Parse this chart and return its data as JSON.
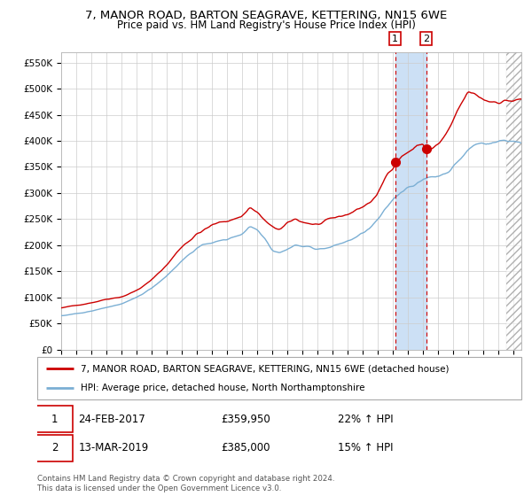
{
  "title": "7, MANOR ROAD, BARTON SEAGRAVE, KETTERING, NN15 6WE",
  "subtitle": "Price paid vs. HM Land Registry's House Price Index (HPI)",
  "legend_line1": "7, MANOR ROAD, BARTON SEAGRAVE, KETTERING, NN15 6WE (detached house)",
  "legend_line2": "HPI: Average price, detached house, North Northamptonshire",
  "annotation1_date": "24-FEB-2017",
  "annotation1_price": "£359,950",
  "annotation1_hpi": "22% ↑ HPI",
  "annotation2_date": "13-MAR-2019",
  "annotation2_price": "£385,000",
  "annotation2_hpi": "15% ↑ HPI",
  "footnote": "Contains HM Land Registry data © Crown copyright and database right 2024.\nThis data is licensed under the Open Government Licence v3.0.",
  "ylim": [
    0,
    570000
  ],
  "yticks": [
    0,
    50000,
    100000,
    150000,
    200000,
    250000,
    300000,
    350000,
    400000,
    450000,
    500000,
    550000
  ],
  "xlim_start": 1995.0,
  "xlim_end": 2025.5,
  "point1_x": 2017.14,
  "point1_y": 359950,
  "point2_x": 2019.2,
  "point2_y": 385000,
  "vline1_x": 2017.14,
  "vline2_x": 2019.2,
  "shade_x1": 2017.14,
  "shade_x2": 2019.2,
  "red_color": "#cc0000",
  "blue_color": "#7bafd4",
  "shade_color": "#cce0f5",
  "background_color": "#ffffff",
  "grid_color": "#cccccc",
  "hatch_start": 2024.5,
  "red_keypoints": [
    [
      1995.0,
      80000
    ],
    [
      1996.0,
      84000
    ],
    [
      1997.0,
      91000
    ],
    [
      1998.0,
      99000
    ],
    [
      1999.0,
      105000
    ],
    [
      2000.0,
      118000
    ],
    [
      2001.0,
      138000
    ],
    [
      2002.0,
      168000
    ],
    [
      2003.0,
      205000
    ],
    [
      2004.0,
      232000
    ],
    [
      2005.0,
      248000
    ],
    [
      2006.0,
      256000
    ],
    [
      2007.0,
      267000
    ],
    [
      2007.5,
      286000
    ],
    [
      2008.0,
      275000
    ],
    [
      2008.5,
      258000
    ],
    [
      2009.0,
      242000
    ],
    [
      2009.5,
      238000
    ],
    [
      2010.0,
      248000
    ],
    [
      2010.5,
      255000
    ],
    [
      2011.0,
      250000
    ],
    [
      2011.5,
      248000
    ],
    [
      2012.0,
      246000
    ],
    [
      2012.5,
      250000
    ],
    [
      2013.0,
      252000
    ],
    [
      2013.5,
      255000
    ],
    [
      2014.0,
      260000
    ],
    [
      2014.5,
      268000
    ],
    [
      2015.0,
      275000
    ],
    [
      2015.5,
      285000
    ],
    [
      2016.0,
      300000
    ],
    [
      2016.5,
      330000
    ],
    [
      2017.0,
      352000
    ],
    [
      2017.14,
      359950
    ],
    [
      2017.5,
      375000
    ],
    [
      2018.0,
      385000
    ],
    [
      2018.5,
      395000
    ],
    [
      2019.0,
      400000
    ],
    [
      2019.2,
      385000
    ],
    [
      2019.5,
      390000
    ],
    [
      2020.0,
      398000
    ],
    [
      2020.5,
      415000
    ],
    [
      2021.0,
      440000
    ],
    [
      2021.5,
      465000
    ],
    [
      2022.0,
      488000
    ],
    [
      2022.5,
      478000
    ],
    [
      2023.0,
      470000
    ],
    [
      2023.5,
      468000
    ],
    [
      2024.0,
      472000
    ],
    [
      2024.5,
      475000
    ],
    [
      2025.0,
      475000
    ]
  ],
  "blue_keypoints": [
    [
      1995.0,
      65000
    ],
    [
      1996.0,
      68000
    ],
    [
      1997.0,
      73000
    ],
    [
      1998.0,
      80000
    ],
    [
      1999.0,
      87000
    ],
    [
      2000.0,
      97000
    ],
    [
      2001.0,
      115000
    ],
    [
      2002.0,
      140000
    ],
    [
      2003.0,
      170000
    ],
    [
      2004.0,
      195000
    ],
    [
      2005.0,
      205000
    ],
    [
      2006.0,
      210000
    ],
    [
      2007.0,
      222000
    ],
    [
      2007.5,
      238000
    ],
    [
      2008.0,
      232000
    ],
    [
      2008.5,
      218000
    ],
    [
      2009.0,
      196000
    ],
    [
      2009.5,
      192000
    ],
    [
      2010.0,
      200000
    ],
    [
      2010.5,
      208000
    ],
    [
      2011.0,
      205000
    ],
    [
      2011.5,
      203000
    ],
    [
      2012.0,
      200000
    ],
    [
      2012.5,
      202000
    ],
    [
      2013.0,
      205000
    ],
    [
      2013.5,
      210000
    ],
    [
      2014.0,
      215000
    ],
    [
      2014.5,
      222000
    ],
    [
      2015.0,
      230000
    ],
    [
      2015.5,
      240000
    ],
    [
      2016.0,
      255000
    ],
    [
      2016.5,
      272000
    ],
    [
      2017.0,
      290000
    ],
    [
      2017.5,
      305000
    ],
    [
      2018.0,
      318000
    ],
    [
      2018.5,
      326000
    ],
    [
      2019.0,
      332000
    ],
    [
      2019.5,
      338000
    ],
    [
      2020.0,
      340000
    ],
    [
      2020.5,
      348000
    ],
    [
      2021.0,
      362000
    ],
    [
      2021.5,
      378000
    ],
    [
      2022.0,
      395000
    ],
    [
      2022.5,
      405000
    ],
    [
      2023.0,
      408000
    ],
    [
      2023.5,
      410000
    ],
    [
      2024.0,
      413000
    ],
    [
      2024.5,
      415000
    ],
    [
      2025.0,
      415000
    ]
  ]
}
